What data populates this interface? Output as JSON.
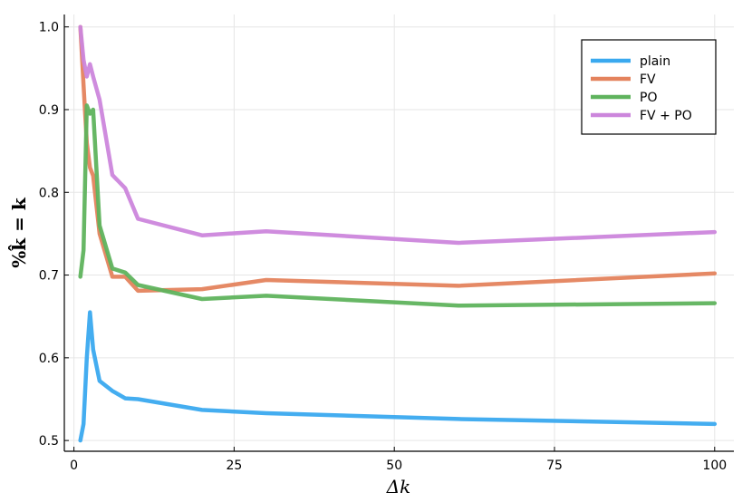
{
  "chart_data": {
    "type": "line",
    "xlabel": "Δk",
    "ylabel": "%k̂ = k",
    "xlim": [
      -1.5,
      103
    ],
    "ylim": [
      0.487,
      1.015
    ],
    "xticks": [
      0,
      25,
      50,
      75,
      100
    ],
    "xtick_labels": [
      "0",
      "25",
      "50",
      "75",
      "100"
    ],
    "yticks": [
      0.5,
      0.6,
      0.7,
      0.8,
      0.9,
      1.0
    ],
    "ytick_labels": [
      "0.5",
      "0.6",
      "0.7",
      "0.8",
      "0.9",
      "1.0"
    ],
    "grid": true,
    "legend_position": "top-right",
    "series": [
      {
        "name": "plain",
        "color": "#3aa9ef",
        "x": [
          1,
          1.5,
          2,
          2.5,
          3,
          4,
          6,
          8,
          10,
          20,
          30,
          60,
          100
        ],
        "y": [
          0.5,
          0.52,
          0.6,
          0.655,
          0.61,
          0.572,
          0.56,
          0.551,
          0.55,
          0.537,
          0.533,
          0.526,
          0.52
        ]
      },
      {
        "name": "FV",
        "color": "#e4835d",
        "x": [
          1,
          1.5,
          2,
          2.5,
          3,
          4,
          6,
          8,
          10,
          20,
          30,
          60,
          100
        ],
        "y": [
          1.0,
          0.93,
          0.86,
          0.83,
          0.82,
          0.75,
          0.698,
          0.698,
          0.681,
          0.683,
          0.694,
          0.687,
          0.702
        ]
      },
      {
        "name": "PO",
        "color": "#5fb35d",
        "x": [
          1,
          1.5,
          2,
          2.5,
          3,
          4,
          6,
          8,
          10,
          20,
          30,
          60,
          100
        ],
        "y": [
          0.698,
          0.73,
          0.905,
          0.895,
          0.9,
          0.76,
          0.708,
          0.703,
          0.688,
          0.671,
          0.675,
          0.663,
          0.666
        ]
      },
      {
        "name": "FV + PO",
        "color": "#cc86dc",
        "x": [
          1,
          1.5,
          2,
          2.5,
          3,
          4,
          6,
          8,
          10,
          20,
          30,
          60,
          100
        ],
        "y": [
          1.0,
          0.96,
          0.94,
          0.955,
          0.94,
          0.912,
          0.821,
          0.805,
          0.768,
          0.748,
          0.753,
          0.739,
          0.752
        ]
      }
    ]
  }
}
